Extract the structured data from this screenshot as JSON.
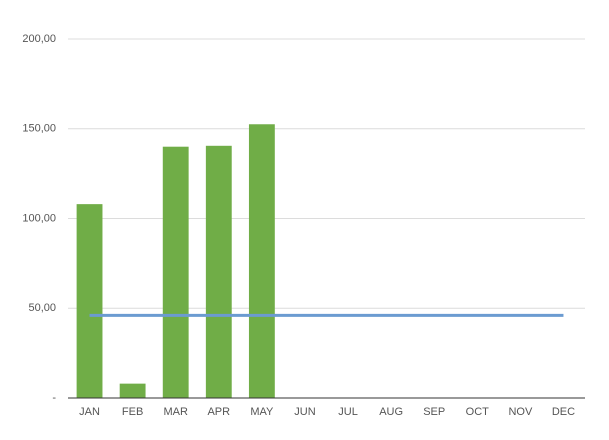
{
  "chart_data": {
    "type": "bar",
    "categories": [
      "JAN",
      "FEB",
      "MAR",
      "APR",
      "MAY",
      "JUN",
      "JUL",
      "AUG",
      "SEP",
      "OCT",
      "NOV",
      "DEC"
    ],
    "series": [
      {
        "type": "bar",
        "color": "#70ad47",
        "values": [
          108,
          8,
          140,
          140.5,
          152.5,
          null,
          null,
          null,
          null,
          null,
          null,
          null
        ]
      },
      {
        "type": "line",
        "color": "#6b9bd1",
        "values": [
          46,
          46,
          46,
          46,
          46,
          46,
          46,
          46,
          46,
          46,
          46,
          46
        ]
      }
    ],
    "ylim": [
      0,
      200
    ],
    "yticks": [
      {
        "value": 0,
        "label": "-"
      },
      {
        "value": 50,
        "label": "50,00"
      },
      {
        "value": 100,
        "label": "100,00"
      },
      {
        "value": 150,
        "label": "150,00"
      },
      {
        "value": 200,
        "label": "200,00"
      }
    ],
    "grid": true
  }
}
